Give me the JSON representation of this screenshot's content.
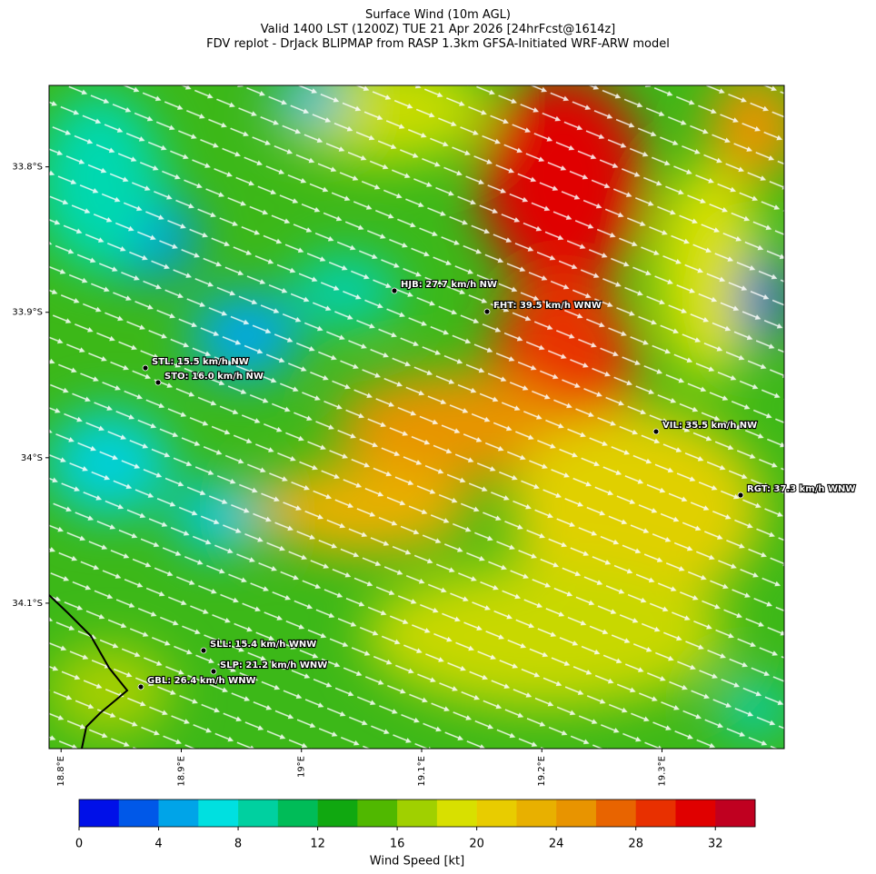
{
  "title": [
    "Surface Wind (10m AGL)",
    "Valid 1400 LST (1200Z) TUE 21 Apr 2026 [24hrFcst@1614z]",
    "FDV replot - DrJack BLIPMAP from RASP 1.3km GFSA-Initiated WRF-ARW model"
  ],
  "map": {
    "xlim": [
      18.79,
      19.4017
    ],
    "ylim": [
      -34.2,
      -33.744
    ],
    "xticks": [
      {
        "value": 18.8,
        "label": "18.8°E"
      },
      {
        "value": 18.9,
        "label": "18.9°E"
      },
      {
        "value": 19.0,
        "label": "19°E"
      },
      {
        "value": 19.1,
        "label": "19.1°E"
      },
      {
        "value": 19.2,
        "label": "19.2°E"
      },
      {
        "value": 19.3,
        "label": "19.3°E"
      }
    ],
    "yticks": [
      {
        "value": -33.8,
        "label": "33.8°S"
      },
      {
        "value": -33.9,
        "label": "33.9°S"
      },
      {
        "value": -34.0,
        "label": "34°S"
      },
      {
        "value": -34.1,
        "label": "34.1°S"
      }
    ],
    "stations": [
      "HJB: 27.7 km/h NW",
      "FHT: 39.5 km/h WNW",
      "STL: 15.5 km/h NW",
      "STO: 16.0 km/h NW",
      "VIL: 35.5 km/h NW",
      "RGT: 37.3 km/h WNW",
      "SLL: 15.4 km/h WNW",
      "SLP: 21.2 km/h WNW",
      "GBL: 26.4 km/h WNW"
    ]
  },
  "colorbar": {
    "clim": [
      0,
      34
    ],
    "ticks": [
      0,
      4,
      8,
      12,
      16,
      20,
      24,
      28,
      32
    ],
    "label": "Wind Speed [kt]",
    "colors": [
      "#0010e8",
      "#0058e8",
      "#00a4e8",
      "#00e0e0",
      "#00d0a0",
      "#00bc58",
      "#10a810",
      "#50b800",
      "#a0d000",
      "#d8e000",
      "#e8cc00",
      "#e8b000",
      "#e89400",
      "#e86400",
      "#e83000",
      "#e00000",
      "#c00020"
    ]
  }
}
